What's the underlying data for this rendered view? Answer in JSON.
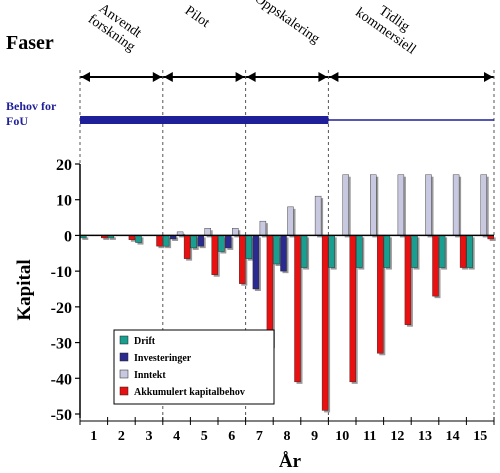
{
  "phases_title": "Faser",
  "phases": [
    "Anvendt\nforskning",
    "Pilot",
    "Oppskalering",
    "Tidlig\nkommersiell"
  ],
  "fou_label": "Behov for\nFoU",
  "colors": {
    "drift": "#1a9e8f",
    "investeringer": "#2b2b8f",
    "inntekt": "#c8c8e0",
    "akkumulert": "#e81010",
    "fou_bar": "#1f1f9a"
  },
  "chart_data": {
    "type": "bar",
    "xlabel": "År",
    "ylabel": "Kapital",
    "ylim": [
      -50,
      20
    ],
    "yticks": [
      20,
      10,
      0,
      -10,
      -20,
      -30,
      -40,
      -50
    ],
    "categories": [
      "1",
      "2",
      "3",
      "4",
      "5",
      "6",
      "7",
      "8",
      "9",
      "10",
      "11",
      "12",
      "13",
      "14",
      "15"
    ],
    "series": [
      {
        "name": "Drift",
        "values": [
          -0.7,
          -0.7,
          -2,
          -3,
          -3.5,
          -4.5,
          -6.5,
          -8,
          -9,
          -9,
          -9,
          -9,
          -9,
          -9,
          -9
        ]
      },
      {
        "name": "Investeringer",
        "values": [
          0,
          0,
          0,
          -1,
          -3,
          -3.5,
          -15,
          -10,
          0,
          0,
          0,
          0,
          0,
          0,
          0
        ]
      },
      {
        "name": "Inntekt",
        "values": [
          0,
          0,
          0,
          1,
          2,
          2,
          4,
          8,
          11,
          17,
          17,
          17,
          17,
          17,
          17
        ]
      },
      {
        "name": "Akkumulert kapitalbehov",
        "values": [
          -0.7,
          -1.2,
          -3,
          -6.5,
          -11,
          -13.5,
          -31,
          -41,
          -49,
          -41,
          -33,
          -25,
          -17,
          -9,
          -1
        ]
      }
    ],
    "legend_position": "bottom-left",
    "grid": false
  }
}
